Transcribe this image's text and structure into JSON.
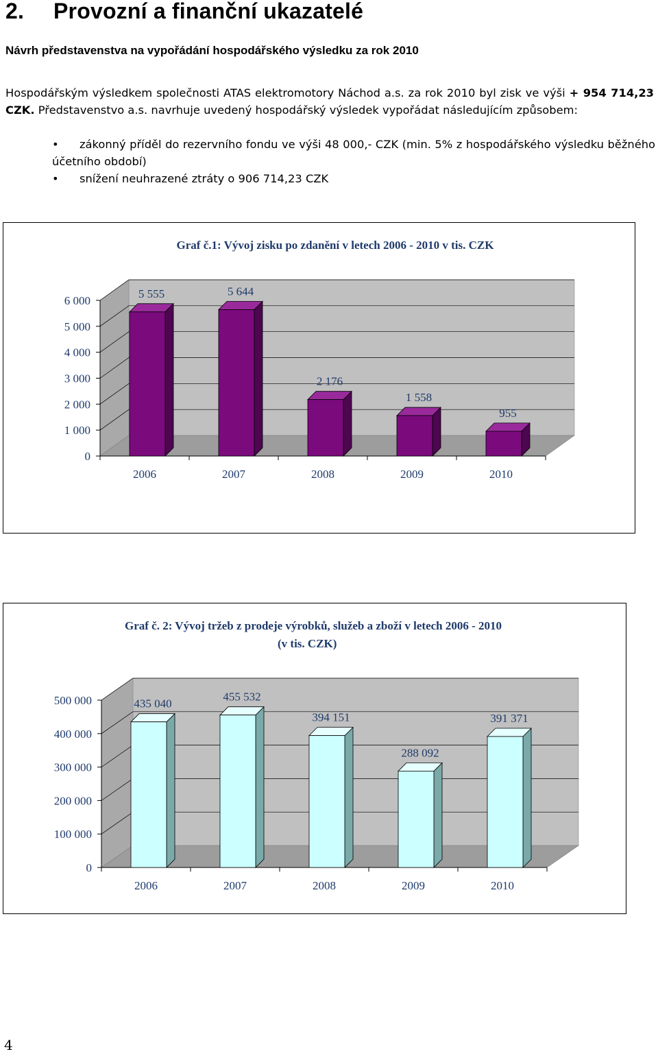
{
  "heading": {
    "number": "2.",
    "title": "Provozní a finanční ukazatelé"
  },
  "subheading": "Návrh představenstva na vypořádání hospodářského výsledku za rok 2010",
  "paragraph": {
    "part1": "Hospodářským výsledkem společnosti ATAS elektromotory Náchod a.s. za rok 2010 byl zisk ve výši ",
    "bold": "+ 954 714,23 CZK.",
    "part2": " Představenstvo a.s. navrhuje uvedený hospodářský výsledek vypořádat následujícím způsobem:"
  },
  "bullets": [
    {
      "symbol": "•",
      "text": "zákonný příděl do rezervního fondu ve výši 48 000,- CZK (min. 5% z hospodářského výsledku běžného účetního období)"
    },
    {
      "symbol": "•",
      "text": "snížení neuhrazené ztráty o 906 714,23 CZK"
    }
  ],
  "page_number": "4",
  "colors": {
    "chart1_front": "#7b0b7d",
    "chart1_side": "#4e0650",
    "chart1_top": "#9a2a9c",
    "chart2_front": "#ccffff",
    "chart2_side": "#7aa9a9",
    "chart2_top": "#e6ffff",
    "wall": "#c0c0c0",
    "floor": "#9d9d9d"
  },
  "chart_data": [
    {
      "type": "bar",
      "title": "Graf č.1: Vývoj  zisku po zdanění  v letech 2006 - 2010 v tis. CZK",
      "categories": [
        "2006",
        "2007",
        "2008",
        "2009",
        "2010"
      ],
      "values": [
        5555,
        5644,
        2176,
        1558,
        955
      ],
      "value_labels": [
        "5 555",
        "5 644",
        "2 176",
        "1 558",
        "955"
      ],
      "ylim": [
        0,
        6000
      ],
      "yticks": [
        0,
        1000,
        2000,
        3000,
        4000,
        5000,
        6000
      ],
      "ytick_labels": [
        "0",
        "1 000",
        "2 000",
        "3 000",
        "4 000",
        "5 000",
        "6 000"
      ],
      "xlabel": "",
      "ylabel": ""
    },
    {
      "type": "bar",
      "title": "Graf  č. 2: Vývoj  tržeb z prodeje  výrobků,   služeb a zboží v letech 2006 - 2010",
      "subtitle": "(v  tis. CZK)",
      "categories": [
        "2006",
        "2007",
        "2008",
        "2009",
        "2010"
      ],
      "values": [
        435040,
        455532,
        394151,
        288092,
        391371
      ],
      "value_labels": [
        "435 040",
        "455 532",
        "394 151",
        "288 092",
        "391 371"
      ],
      "ylim": [
        0,
        500000
      ],
      "yticks": [
        0,
        100000,
        200000,
        300000,
        400000,
        500000
      ],
      "ytick_labels": [
        "0",
        "100 000",
        "200 000",
        "300 000",
        "400 000",
        "500 000"
      ],
      "xlabel": "",
      "ylabel": ""
    }
  ]
}
